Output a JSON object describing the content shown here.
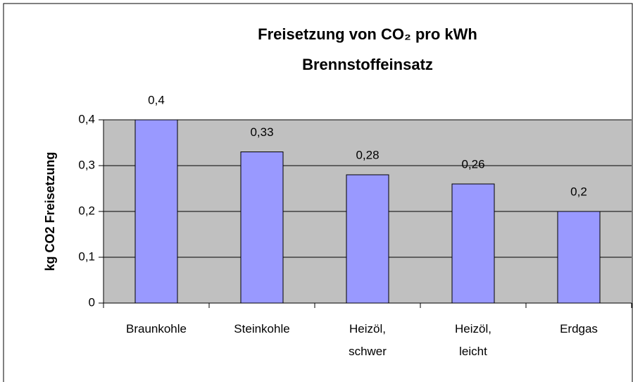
{
  "chart_data": {
    "type": "bar",
    "title": [
      "Freisetzung von CO₂ pro kWh",
      "Brennstoffeinsatz"
    ],
    "y_label": "kg CO2 Freisetzung",
    "categories": [
      "Braunkohle",
      "Steinkohle",
      "Heizöl, schwer",
      "Heizöl, leicht",
      "Erdgas"
    ],
    "values": [
      0.4,
      0.33,
      0.28,
      0.26,
      0.2
    ],
    "value_labels": [
      "0,4",
      "0,33",
      "0,28",
      "0,26",
      "0,2"
    ],
    "color": "#9999ff",
    "ylim": [
      0,
      0.4
    ],
    "yticks": [
      0,
      {
        "value": 0.1,
        "label": "0,1"
      },
      {
        "value": 0.2,
        "label": "0,2"
      },
      {
        "value": 0.3,
        "label": "0,3"
      },
      {
        "value": 0.4,
        "label": "0,4"
      }
    ],
    "grid": true
  }
}
